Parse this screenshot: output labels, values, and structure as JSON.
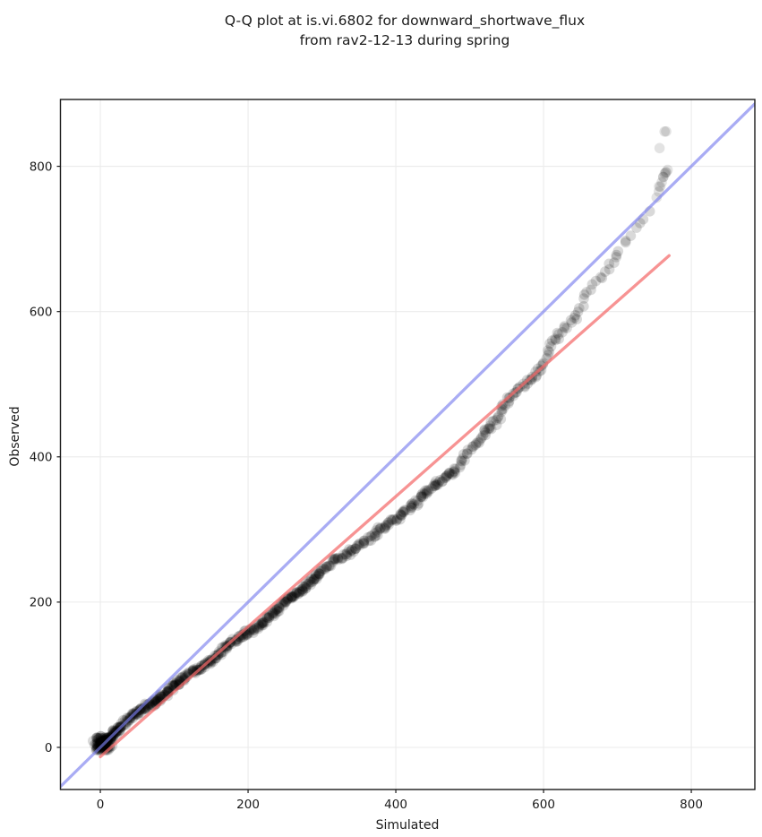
{
  "figure": {
    "background": "#ffffff"
  },
  "chart_data": {
    "type": "scatter",
    "subtype": "qq_plot",
    "title_lines": [
      "Q-Q plot at is.vi.6802 for downward_shortwave_flux",
      "from rav2-12-13 during spring"
    ],
    "xlabel": "Simulated",
    "ylabel": "Observed",
    "xlim": [
      -54,
      886
    ],
    "ylim": [
      -58,
      892
    ],
    "xticks": [
      0,
      200,
      400,
      600,
      800
    ],
    "yticks": [
      0,
      200,
      400,
      600,
      800
    ],
    "grid": true,
    "legend": "none",
    "identity_line": {
      "name": "1:1 reference line",
      "color": "rgba(123,128,238,0.65)",
      "from": [
        -54,
        -54
      ],
      "to": [
        886,
        886
      ]
    },
    "fit_line": {
      "name": "quantile fit line",
      "color": "rgba(244,106,106,0.72)",
      "from": [
        0,
        -13
      ],
      "to": [
        770,
        677
      ]
    },
    "quantile_points": [
      [
        0,
        1
      ],
      [
        3,
        5
      ],
      [
        6,
        8
      ],
      [
        9,
        11
      ],
      [
        12,
        14
      ],
      [
        15,
        17
      ],
      [
        18,
        20
      ],
      [
        22,
        24
      ],
      [
        26,
        28
      ],
      [
        30,
        31
      ],
      [
        35,
        35
      ],
      [
        40,
        39
      ],
      [
        46,
        44
      ],
      [
        52,
        48
      ],
      [
        58,
        53
      ],
      [
        65,
        58
      ],
      [
        72,
        63
      ],
      [
        80,
        69
      ],
      [
        88,
        75
      ],
      [
        96,
        81
      ],
      [
        105,
        88
      ],
      [
        115,
        95
      ],
      [
        126,
        103
      ],
      [
        137,
        111
      ],
      [
        148,
        119
      ],
      [
        159,
        128
      ],
      [
        170,
        137
      ],
      [
        182,
        146
      ],
      [
        194,
        154
      ],
      [
        206,
        163
      ],
      [
        218,
        172
      ],
      [
        231,
        182
      ],
      [
        245,
        194
      ],
      [
        259,
        206
      ],
      [
        273,
        218
      ],
      [
        287,
        232
      ],
      [
        300,
        242
      ],
      [
        313,
        252
      ],
      [
        326,
        262
      ],
      [
        339,
        271
      ],
      [
        352,
        281
      ],
      [
        365,
        289
      ],
      [
        378,
        298
      ],
      [
        391,
        307
      ],
      [
        404,
        316
      ],
      [
        417,
        328
      ],
      [
        430,
        341
      ],
      [
        443,
        351
      ],
      [
        456,
        362
      ],
      [
        469,
        373
      ],
      [
        482,
        387
      ],
      [
        495,
        401
      ],
      [
        508,
        416
      ],
      [
        520,
        431
      ],
      [
        532,
        447
      ],
      [
        543,
        463
      ],
      [
        554,
        477
      ],
      [
        565,
        491
      ],
      [
        576,
        503
      ],
      [
        587,
        514
      ],
      [
        597,
        525
      ],
      [
        607,
        546
      ],
      [
        616,
        562
      ],
      [
        625,
        573
      ],
      [
        634,
        582
      ],
      [
        643,
        593
      ],
      [
        652,
        608
      ],
      [
        661,
        625
      ],
      [
        669,
        637
      ],
      [
        677,
        646
      ],
      [
        684,
        654
      ],
      [
        690,
        664
      ],
      [
        696,
        672
      ],
      [
        703,
        682
      ],
      [
        709,
        690
      ],
      [
        714,
        697
      ],
      [
        719,
        706
      ],
      [
        725,
        714
      ],
      [
        731,
        722
      ],
      [
        738,
        731
      ],
      [
        745,
        739
      ],
      [
        751,
        748
      ]
    ],
    "upper_tail_points": [
      [
        753,
        757,
        1
      ],
      [
        756,
        765,
        1
      ],
      [
        758,
        772,
        2
      ],
      [
        760,
        778,
        1
      ],
      [
        762,
        785,
        2
      ],
      [
        764,
        790,
        2
      ],
      [
        766,
        792,
        1
      ],
      [
        768,
        795,
        1
      ],
      [
        757,
        825,
        1
      ],
      [
        766,
        848,
        2
      ]
    ],
    "style": {
      "marker_color": "#000000",
      "marker_alpha": 0.15,
      "tail_marker_alpha": 0.11,
      "marker_radius_px": 5.8,
      "grid_color": "#ebebeb",
      "spine_color": "#1a1a1a",
      "text_color": "#1a1a1a",
      "origin_cluster_count": 90
    }
  }
}
